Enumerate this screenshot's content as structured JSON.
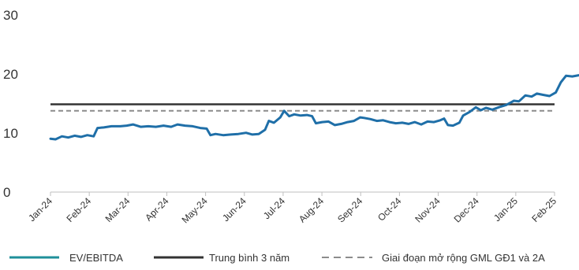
{
  "chart_data": {
    "type": "line",
    "title": "",
    "xlabel": "",
    "ylabel": "",
    "ylim": [
      0,
      30
    ],
    "yticks": [
      "0",
      "10",
      "20",
      "30"
    ],
    "x_tick_labels": [
      "Jan-24",
      "Feb-24",
      "Mar-24",
      "Apr-24",
      "May-24",
      "Jun-24",
      "Jul-24",
      "Aug-24",
      "Sep-24",
      "Oct-24",
      "Nov-24",
      "Dec-24",
      "Jan-25",
      "Feb-25"
    ],
    "grid": false,
    "legend_position": "bottom",
    "series": [
      {
        "name": "EV/EBITDA",
        "color": "#1f6fa8",
        "style": "solid",
        "points": [
          [
            "2024-01-01",
            9.0
          ],
          [
            "2024-01-05",
            8.9
          ],
          [
            "2024-01-10",
            9.4
          ],
          [
            "2024-01-15",
            9.2
          ],
          [
            "2024-01-20",
            9.5
          ],
          [
            "2024-01-25",
            9.3
          ],
          [
            "2024-01-30",
            9.6
          ],
          [
            "2024-02-04",
            9.4
          ],
          [
            "2024-02-07",
            10.8
          ],
          [
            "2024-02-12",
            10.9
          ],
          [
            "2024-02-18",
            11.1
          ],
          [
            "2024-02-25",
            11.1
          ],
          [
            "2024-03-01",
            11.2
          ],
          [
            "2024-03-06",
            11.4
          ],
          [
            "2024-03-12",
            11.0
          ],
          [
            "2024-03-18",
            11.1
          ],
          [
            "2024-03-24",
            11.0
          ],
          [
            "2024-03-30",
            11.2
          ],
          [
            "2024-04-05",
            11.0
          ],
          [
            "2024-04-10",
            11.4
          ],
          [
            "2024-04-16",
            11.2
          ],
          [
            "2024-04-22",
            11.1
          ],
          [
            "2024-04-28",
            10.8
          ],
          [
            "2024-05-03",
            10.7
          ],
          [
            "2024-05-06",
            9.6
          ],
          [
            "2024-05-10",
            9.8
          ],
          [
            "2024-05-16",
            9.6
          ],
          [
            "2024-05-22",
            9.7
          ],
          [
            "2024-05-28",
            9.8
          ],
          [
            "2024-06-03",
            10.0
          ],
          [
            "2024-06-08",
            9.7
          ],
          [
            "2024-06-13",
            9.8
          ],
          [
            "2024-06-18",
            10.5
          ],
          [
            "2024-06-21",
            12.0
          ],
          [
            "2024-06-25",
            11.7
          ],
          [
            "2024-06-30",
            12.6
          ],
          [
            "2024-07-03",
            13.7
          ],
          [
            "2024-07-07",
            12.8
          ],
          [
            "2024-07-11",
            13.1
          ],
          [
            "2024-07-16",
            12.9
          ],
          [
            "2024-07-21",
            13.0
          ],
          [
            "2024-07-25",
            12.8
          ],
          [
            "2024-07-28",
            11.6
          ],
          [
            "2024-08-02",
            11.8
          ],
          [
            "2024-08-07",
            11.9
          ],
          [
            "2024-08-12",
            11.3
          ],
          [
            "2024-08-17",
            11.5
          ],
          [
            "2024-08-22",
            11.8
          ],
          [
            "2024-08-27",
            12.0
          ],
          [
            "2024-09-01",
            12.6
          ],
          [
            "2024-09-04",
            12.5
          ],
          [
            "2024-09-09",
            12.3
          ],
          [
            "2024-09-14",
            12.0
          ],
          [
            "2024-09-19",
            12.1
          ],
          [
            "2024-09-24",
            11.8
          ],
          [
            "2024-09-29",
            11.6
          ],
          [
            "2024-10-04",
            11.7
          ],
          [
            "2024-10-09",
            11.5
          ],
          [
            "2024-10-14",
            11.8
          ],
          [
            "2024-10-19",
            11.4
          ],
          [
            "2024-10-24",
            11.9
          ],
          [
            "2024-10-29",
            11.8
          ],
          [
            "2024-11-03",
            12.1
          ],
          [
            "2024-11-06",
            12.4
          ],
          [
            "2024-11-09",
            11.3
          ],
          [
            "2024-11-13",
            11.2
          ],
          [
            "2024-11-18",
            11.7
          ],
          [
            "2024-11-21",
            12.9
          ],
          [
            "2024-11-26",
            13.5
          ],
          [
            "2024-12-01",
            14.3
          ],
          [
            "2024-12-05",
            13.8
          ],
          [
            "2024-12-09",
            14.2
          ],
          [
            "2024-12-14",
            13.9
          ],
          [
            "2024-12-19",
            14.3
          ],
          [
            "2024-12-25",
            14.7
          ],
          [
            "2024-12-31",
            15.4
          ],
          [
            "2025-01-04",
            15.3
          ],
          [
            "2025-01-09",
            16.3
          ],
          [
            "2025-01-14",
            16.1
          ],
          [
            "2025-01-18",
            16.6
          ],
          [
            "2025-01-23",
            16.4
          ],
          [
            "2025-01-28",
            16.2
          ],
          [
            "2025-02-02",
            16.8
          ],
          [
            "2025-02-06",
            18.5
          ],
          [
            "2025-02-10",
            19.6
          ],
          [
            "2025-02-15",
            19.5
          ],
          [
            "2025-02-20",
            19.7
          ],
          [
            "2025-02-23",
            19.6
          ],
          [
            "2025-02-25",
            20.6
          ]
        ]
      },
      {
        "name": "Trung bình 3 năm",
        "color": "#333333",
        "style": "solid",
        "value": 14.8
      },
      {
        "name": "Giai đoạn mở rộng GML GĐ1 và 2A",
        "color": "#8c8c8c",
        "style": "dashed",
        "value": 13.7
      }
    ]
  },
  "legend": {
    "ev_label": "EV/EBITDA",
    "avg_label": "Trung bình 3 năm",
    "expand_label": "Giai đoạn mở rộng GML GĐ1 và 2A"
  }
}
